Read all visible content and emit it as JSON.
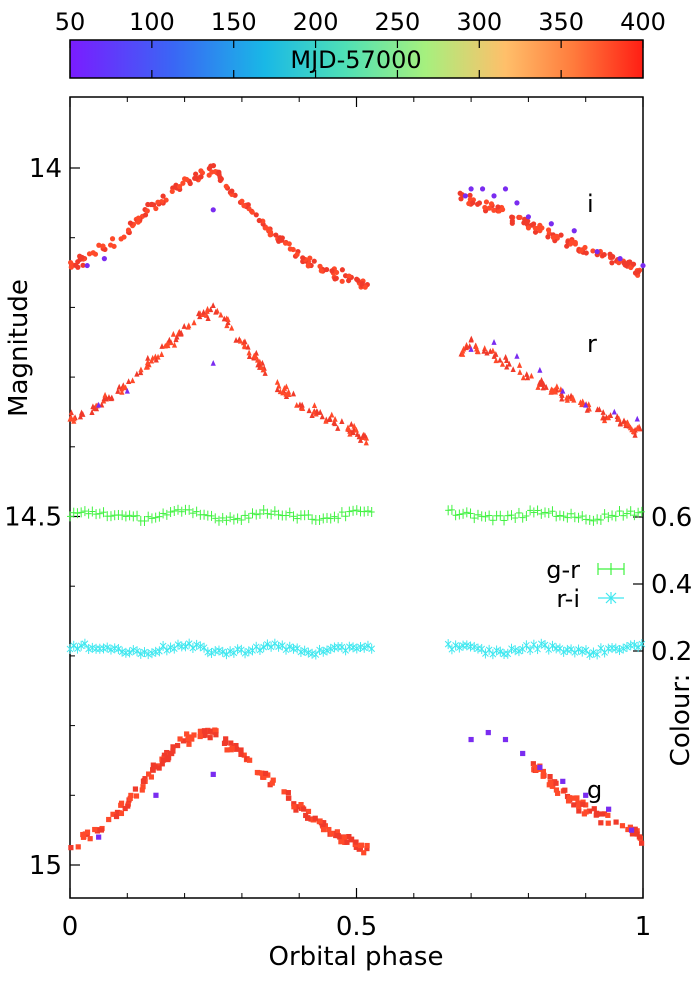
{
  "chart_data": {
    "type": "scatter",
    "xlabel": "Orbital phase",
    "ylabel": "Magnitude",
    "y2label": "Colour:",
    "x_ticks": [
      "0",
      "0.5",
      "1"
    ],
    "x_tick_values": [
      0,
      0.5,
      1
    ],
    "y_ticks": [
      "14",
      "14.5",
      "15"
    ],
    "y_tick_values": [
      14,
      14.5,
      15
    ],
    "y2_ticks": [
      "0.6",
      "0.4",
      "0.2"
    ],
    "xlim": [
      0,
      1
    ],
    "ylim_reversed": [
      13.93,
      15.02
    ],
    "colorbar": {
      "label": "MJD-57000",
      "ticks": [
        "50",
        "100",
        "150",
        "200",
        "250",
        "300",
        "350",
        "400"
      ],
      "range": [
        50,
        400
      ],
      "colormap": "rainbow"
    },
    "band_labels": [
      "i",
      "r",
      "g"
    ],
    "legend": [
      {
        "label": "g-r",
        "color": "#3ff23f",
        "marker": "errorbar-plus"
      },
      {
        "label": "r-i",
        "color": "#3fe8f0",
        "marker": "star"
      }
    ],
    "series": [
      {
        "name": "i",
        "marker": "circle",
        "profile": [
          [
            0.0,
            14.14
          ],
          [
            0.05,
            14.12
          ],
          [
            0.1,
            14.09
          ],
          [
            0.15,
            14.05
          ],
          [
            0.2,
            14.02
          ],
          [
            0.25,
            14.0
          ],
          [
            0.3,
            14.05
          ],
          [
            0.35,
            14.09
          ],
          [
            0.4,
            14.13
          ],
          [
            0.45,
            14.15
          ],
          [
            0.5,
            14.16
          ],
          [
            0.52,
            14.17
          ],
          [
            0.68,
            14.04
          ],
          [
            0.7,
            14.05
          ],
          [
            0.75,
            14.06
          ],
          [
            0.8,
            14.08
          ],
          [
            0.85,
            14.1
          ],
          [
            0.9,
            14.12
          ],
          [
            0.95,
            14.13
          ],
          [
            1.0,
            14.15
          ]
        ],
        "early_epoch_points": [
          [
            0.69,
            14.04
          ],
          [
            0.7,
            14.03
          ],
          [
            0.72,
            14.03
          ],
          [
            0.74,
            14.04
          ],
          [
            0.76,
            14.03
          ],
          [
            0.78,
            14.05
          ],
          [
            0.8,
            14.07
          ],
          [
            0.84,
            14.08
          ],
          [
            0.88,
            14.09
          ],
          [
            0.92,
            14.12
          ],
          [
            0.96,
            14.13
          ],
          [
            1.0,
            14.14
          ],
          [
            0.03,
            14.14
          ],
          [
            0.06,
            14.13
          ],
          [
            0.25,
            14.06
          ]
        ]
      },
      {
        "name": "r",
        "marker": "triangle",
        "profile": [
          [
            0.0,
            14.36
          ],
          [
            0.05,
            14.34
          ],
          [
            0.1,
            14.31
          ],
          [
            0.15,
            14.27
          ],
          [
            0.2,
            14.23
          ],
          [
            0.25,
            14.2
          ],
          [
            0.3,
            14.25
          ],
          [
            0.35,
            14.3
          ],
          [
            0.4,
            14.34
          ],
          [
            0.45,
            14.36
          ],
          [
            0.5,
            14.38
          ],
          [
            0.52,
            14.39
          ],
          [
            0.7,
            14.25
          ],
          [
            0.75,
            14.27
          ],
          [
            0.8,
            14.3
          ],
          [
            0.85,
            14.32
          ],
          [
            0.9,
            14.34
          ],
          [
            0.95,
            14.36
          ],
          [
            1.0,
            14.38
          ]
        ],
        "early_epoch_points": [
          [
            0.7,
            14.26
          ],
          [
            0.74,
            14.25
          ],
          [
            0.78,
            14.27
          ],
          [
            0.82,
            14.29
          ],
          [
            0.86,
            14.32
          ],
          [
            0.9,
            14.34
          ],
          [
            0.95,
            14.35
          ],
          [
            0.99,
            14.36
          ],
          [
            0.05,
            14.34
          ],
          [
            0.1,
            14.32
          ],
          [
            0.25,
            14.28
          ]
        ]
      },
      {
        "name": "g",
        "marker": "square",
        "profile": [
          [
            0.0,
            14.97
          ],
          [
            0.05,
            14.95
          ],
          [
            0.1,
            14.91
          ],
          [
            0.15,
            14.86
          ],
          [
            0.2,
            14.82
          ],
          [
            0.25,
            14.81
          ],
          [
            0.3,
            14.84
          ],
          [
            0.35,
            14.88
          ],
          [
            0.4,
            14.92
          ],
          [
            0.45,
            14.95
          ],
          [
            0.5,
            14.97
          ],
          [
            0.52,
            14.98
          ],
          [
            0.8,
            14.85
          ],
          [
            0.85,
            14.89
          ],
          [
            0.9,
            14.92
          ],
          [
            0.95,
            14.94
          ],
          [
            1.0,
            14.96
          ]
        ],
        "early_epoch_points": [
          [
            0.7,
            14.82
          ],
          [
            0.73,
            14.81
          ],
          [
            0.76,
            14.82
          ],
          [
            0.79,
            14.84
          ],
          [
            0.82,
            14.86
          ],
          [
            0.86,
            14.88
          ],
          [
            0.9,
            14.9
          ],
          [
            0.94,
            14.92
          ],
          [
            0.98,
            14.95
          ],
          [
            0.05,
            14.96
          ],
          [
            0.15,
            14.9
          ],
          [
            0.25,
            14.87
          ]
        ]
      },
      {
        "name": "g-r",
        "axis": "colour",
        "value_range": [
          0.59,
          0.62
        ]
      },
      {
        "name": "r-i",
        "axis": "colour",
        "value_range": [
          0.19,
          0.22
        ]
      }
    ]
  }
}
